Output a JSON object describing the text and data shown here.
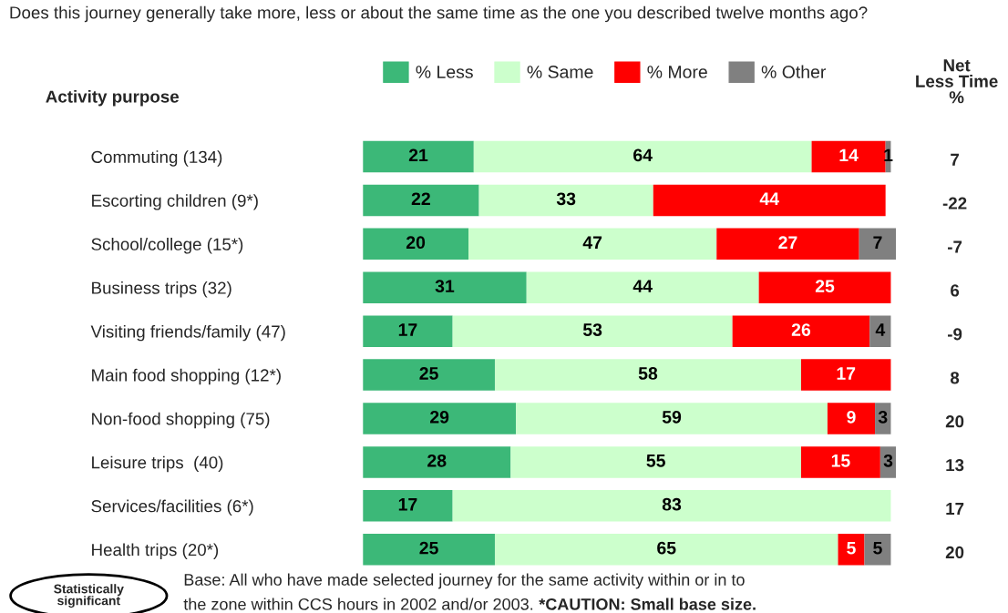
{
  "chart_data": {
    "type": "bar",
    "orientation": "horizontal",
    "stacked": true,
    "title": "Does this journey generally take more, less or about the same time as the one you described twelve months ago?",
    "ylabel": "Activity purpose",
    "categories": [
      "Commuting (134)",
      "Escorting children (9*)",
      "School/college (15*)",
      "Business trips (32)",
      "Visiting friends/family (47)",
      "Main food shopping (12*)",
      "Non-food shopping (75)",
      "Leisure trips  (40)",
      "Services/facilities (6*)",
      "Health trips (20*)"
    ],
    "series": [
      {
        "name": "% Less",
        "color": "#3cb878",
        "values": [
          21,
          22,
          20,
          31,
          17,
          25,
          29,
          28,
          17,
          25
        ]
      },
      {
        "name": "% Same",
        "color": "#ccffcc",
        "values": [
          64,
          33,
          47,
          44,
          53,
          58,
          59,
          55,
          83,
          65
        ]
      },
      {
        "name": "% More",
        "color": "#ff0000",
        "values": [
          14,
          44,
          27,
          25,
          26,
          17,
          9,
          15,
          null,
          5
        ]
      },
      {
        "name": "% Other",
        "color": "#808080",
        "values": [
          1,
          null,
          7,
          null,
          4,
          null,
          3,
          3,
          null,
          5
        ]
      }
    ],
    "xlim": [
      0,
      101
    ],
    "data_labels": true,
    "legend": "top",
    "grid": false,
    "annotations": [
      "Net\nLess Time\n%",
      "Statistically\nsignificant",
      "Base: All who have made selected journey for the same activity within or in to",
      "the zone within CCS hours in 2002 and/or 2003.",
      "*CAUTION: Small base size.",
      "7",
      "-22",
      "-7",
      "6",
      "-9",
      "8",
      "20",
      "13",
      "17",
      "20"
    ]
  }
}
